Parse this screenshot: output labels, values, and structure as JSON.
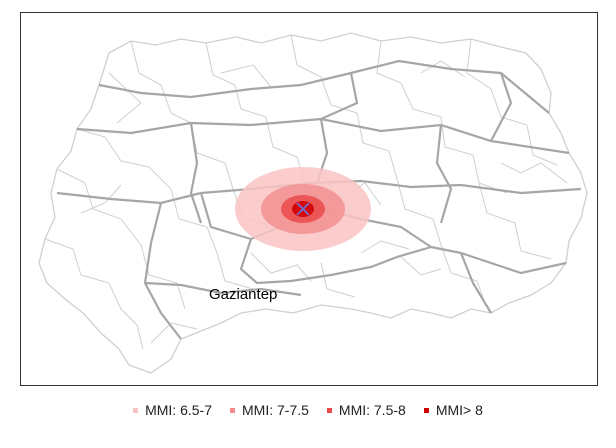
{
  "map": {
    "place_label": "Gaziantep",
    "epicenter_marker": "x-mark-icon",
    "colors": {
      "border_major": "#a6a6a6",
      "border_minor": "#cfcfcf",
      "epicenter": "#6f6fd6"
    }
  },
  "legend": {
    "items": [
      {
        "label": "MMI: 6.5-7",
        "color": "#f9c3c3"
      },
      {
        "label": "MMI: 7-7.5",
        "color": "#f28c8c"
      },
      {
        "label": "MMI: 7.5-8",
        "color": "#ea4a4a"
      },
      {
        "label": "MMI> 8",
        "color": "#d10000"
      }
    ]
  }
}
